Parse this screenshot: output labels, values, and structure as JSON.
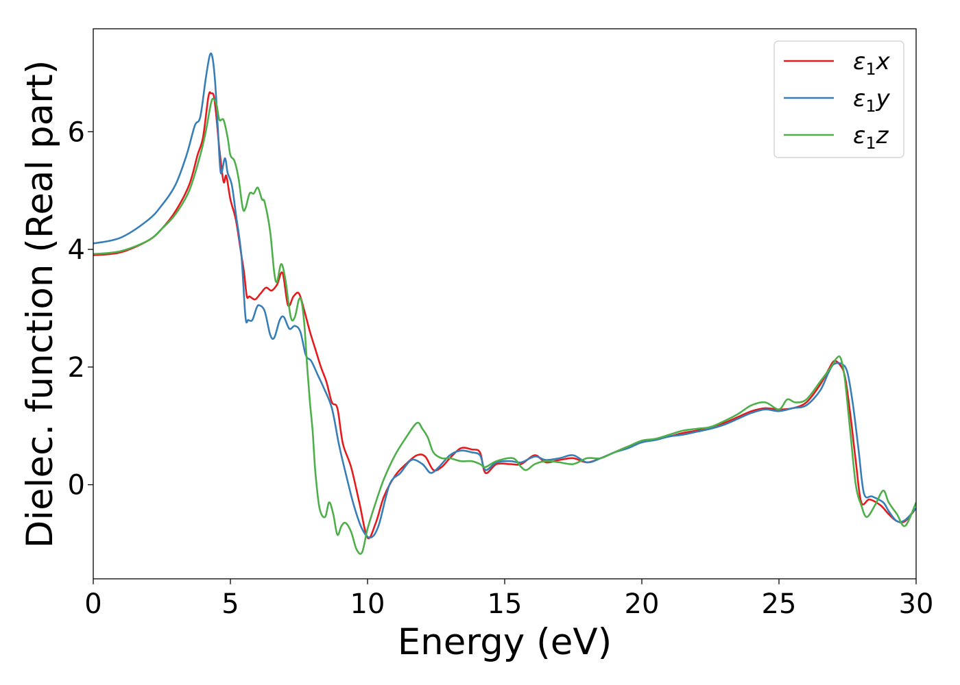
{
  "chart_data": {
    "type": "line",
    "xlabel": "Energy (eV)",
    "ylabel": "Dielec. function (Real part)",
    "xlim": [
      0,
      30
    ],
    "ylim": [
      -1.6,
      7.75
    ],
    "xticks": [
      0,
      5,
      10,
      15,
      20,
      25,
      30
    ],
    "yticks": [
      0,
      2,
      4,
      6
    ],
    "grid": false,
    "legend_position": "top-right",
    "series": [
      {
        "name": "ε₁x",
        "legend_base": "ε",
        "legend_sub": "1",
        "legend_suffix": "x",
        "color": "#e41a1c",
        "x": [
          0,
          1,
          2,
          2.5,
          3,
          3.5,
          3.8,
          4.0,
          4.2,
          4.3,
          4.4,
          4.5,
          4.6,
          4.75,
          4.85,
          5.0,
          5.2,
          5.4,
          5.5,
          5.6,
          5.7,
          5.9,
          6.1,
          6.3,
          6.5,
          6.7,
          6.9,
          7.1,
          7.3,
          7.5,
          7.7,
          7.9,
          8.1,
          8.3,
          8.5,
          8.7,
          8.9,
          9.1,
          9.4,
          9.7,
          10.0,
          10.3,
          10.6,
          11.0,
          11.4,
          11.8,
          12.1,
          12.4,
          12.7,
          13.0,
          13.4,
          13.8,
          14.1,
          14.3,
          14.7,
          15.2,
          15.6,
          16.1,
          16.5,
          17.0,
          17.5,
          18.0,
          18.5,
          19.0,
          19.5,
          20.0,
          20.5,
          21.0,
          21.5,
          22.0,
          22.5,
          23.0,
          23.5,
          24.0,
          24.5,
          25.0,
          25.5,
          26.0,
          26.5,
          26.8,
          27.0,
          27.2,
          27.4,
          27.6,
          27.8,
          28.0,
          28.3,
          28.7,
          29.0,
          29.3,
          29.6,
          30.0
        ],
        "y": [
          3.9,
          3.95,
          4.15,
          4.35,
          4.65,
          5.1,
          5.6,
          5.9,
          6.6,
          6.65,
          6.6,
          6.2,
          5.7,
          5.15,
          5.25,
          4.85,
          4.5,
          3.9,
          3.6,
          3.2,
          3.2,
          3.15,
          3.25,
          3.35,
          3.3,
          3.4,
          3.6,
          3.05,
          3.2,
          3.25,
          2.95,
          2.6,
          2.3,
          2.0,
          1.75,
          1.4,
          1.3,
          0.7,
          0.3,
          -0.3,
          -0.9,
          -0.65,
          -0.2,
          0.15,
          0.35,
          0.5,
          0.48,
          0.25,
          0.3,
          0.45,
          0.62,
          0.6,
          0.55,
          0.2,
          0.35,
          0.35,
          0.35,
          0.5,
          0.38,
          0.42,
          0.45,
          0.38,
          0.45,
          0.55,
          0.65,
          0.72,
          0.78,
          0.82,
          0.88,
          0.92,
          0.98,
          1.05,
          1.15,
          1.25,
          1.3,
          1.28,
          1.3,
          1.4,
          1.7,
          1.95,
          2.1,
          2.05,
          1.85,
          1.2,
          0.4,
          -0.3,
          -0.25,
          -0.35,
          -0.5,
          -0.62,
          -0.62,
          -0.4
        ]
      },
      {
        "name": "ε₁y",
        "legend_base": "ε",
        "legend_sub": "1",
        "legend_suffix": "y",
        "color": "#377eb8",
        "x": [
          0,
          1,
          2,
          2.5,
          3,
          3.4,
          3.7,
          3.9,
          4.1,
          4.25,
          4.35,
          4.45,
          4.55,
          4.65,
          4.8,
          4.9,
          5.05,
          5.2,
          5.4,
          5.55,
          5.65,
          5.8,
          5.95,
          6.05,
          6.25,
          6.45,
          6.6,
          6.8,
          6.95,
          7.15,
          7.35,
          7.55,
          7.75,
          7.95,
          8.2,
          8.4,
          8.7,
          8.95,
          9.2,
          9.5,
          9.8,
          10.1,
          10.4,
          10.8,
          11.2,
          11.6,
          12.0,
          12.3,
          12.6,
          13.0,
          13.4,
          13.8,
          14.1,
          14.3,
          14.7,
          15.2,
          15.6,
          16.1,
          16.5,
          17.0,
          17.5,
          18.0,
          18.5,
          19.0,
          19.5,
          20.0,
          20.5,
          21.0,
          21.5,
          22.0,
          22.5,
          23.0,
          23.5,
          24.0,
          24.5,
          25.0,
          25.5,
          26.0,
          26.5,
          26.8,
          27.0,
          27.3,
          27.5,
          27.7,
          27.9,
          28.1,
          28.4,
          28.8,
          29.0,
          29.3,
          29.6,
          30.0
        ],
        "y": [
          4.1,
          4.2,
          4.5,
          4.75,
          5.1,
          5.6,
          6.1,
          6.25,
          6.9,
          7.3,
          7.25,
          6.8,
          6.0,
          5.3,
          5.55,
          5.3,
          5.1,
          4.6,
          3.9,
          2.85,
          2.8,
          2.8,
          3.0,
          3.05,
          2.95,
          2.55,
          2.5,
          2.8,
          2.85,
          2.65,
          2.7,
          2.6,
          2.2,
          2.1,
          1.85,
          1.65,
          1.3,
          0.7,
          0.2,
          -0.35,
          -0.75,
          -0.9,
          -0.7,
          0.0,
          0.2,
          0.42,
          0.35,
          0.2,
          0.3,
          0.5,
          0.58,
          0.55,
          0.5,
          0.25,
          0.38,
          0.4,
          0.38,
          0.48,
          0.42,
          0.45,
          0.5,
          0.38,
          0.45,
          0.55,
          0.62,
          0.72,
          0.76,
          0.82,
          0.85,
          0.9,
          0.95,
          1.02,
          1.12,
          1.22,
          1.28,
          1.25,
          1.3,
          1.35,
          1.6,
          1.9,
          2.05,
          2.05,
          1.9,
          1.35,
          0.6,
          -0.15,
          -0.2,
          -0.3,
          -0.45,
          -0.62,
          -0.6,
          -0.4
        ]
      },
      {
        "name": "ε₁z",
        "legend_base": "ε",
        "legend_sub": "1",
        "legend_suffix": "z",
        "color": "#4daf4a",
        "x": [
          0,
          1,
          2,
          2.5,
          3,
          3.5,
          3.9,
          4.1,
          4.3,
          4.4,
          4.5,
          4.6,
          4.75,
          4.9,
          5.0,
          5.15,
          5.3,
          5.45,
          5.55,
          5.7,
          5.85,
          6.0,
          6.15,
          6.25,
          6.45,
          6.6,
          6.7,
          6.85,
          7.0,
          7.2,
          7.35,
          7.5,
          7.6,
          7.7,
          7.8,
          7.9,
          8.0,
          8.1,
          8.25,
          8.45,
          8.6,
          8.75,
          8.9,
          9.05,
          9.2,
          9.4,
          9.6,
          9.8,
          10.0,
          10.3,
          10.6,
          11.0,
          11.4,
          11.8,
          12.0,
          12.2,
          12.4,
          12.7,
          13.0,
          13.4,
          13.8,
          14.1,
          14.3,
          14.7,
          15.3,
          15.6,
          15.8,
          16.1,
          16.5,
          17.0,
          17.5,
          18.0,
          18.5,
          19.0,
          19.5,
          20.0,
          20.5,
          21.0,
          21.5,
          22.0,
          22.5,
          23.0,
          23.5,
          24.0,
          24.5,
          25.0,
          25.3,
          25.6,
          26.0,
          26.5,
          26.9,
          27.1,
          27.25,
          27.4,
          27.6,
          27.8,
          28.0,
          28.2,
          28.5,
          28.8,
          29.0,
          29.3,
          29.6,
          30.0
        ],
        "y": [
          3.92,
          3.97,
          4.15,
          4.35,
          4.6,
          5.0,
          5.6,
          6.0,
          6.5,
          6.55,
          6.45,
          6.2,
          6.2,
          5.9,
          5.6,
          5.5,
          5.2,
          4.7,
          4.7,
          4.95,
          4.95,
          5.05,
          4.85,
          4.8,
          4.3,
          3.6,
          3.45,
          3.75,
          3.5,
          2.85,
          2.85,
          3.15,
          3.1,
          2.7,
          2.0,
          1.4,
          0.9,
          0.2,
          -0.4,
          -0.55,
          -0.3,
          -0.5,
          -0.85,
          -0.7,
          -0.65,
          -0.8,
          -1.1,
          -1.15,
          -0.75,
          -0.3,
          0.1,
          0.5,
          0.8,
          1.05,
          0.95,
          0.8,
          0.55,
          0.45,
          0.45,
          0.4,
          0.4,
          0.35,
          0.3,
          0.4,
          0.45,
          0.3,
          0.25,
          0.35,
          0.4,
          0.38,
          0.35,
          0.45,
          0.45,
          0.55,
          0.65,
          0.75,
          0.78,
          0.85,
          0.92,
          0.95,
          0.98,
          1.08,
          1.2,
          1.35,
          1.4,
          1.28,
          1.45,
          1.4,
          1.45,
          1.75,
          2.0,
          2.15,
          2.15,
          1.8,
          0.9,
          0.0,
          -0.35,
          -0.55,
          -0.35,
          -0.1,
          -0.3,
          -0.5,
          -0.7,
          -0.3
        ]
      }
    ]
  }
}
